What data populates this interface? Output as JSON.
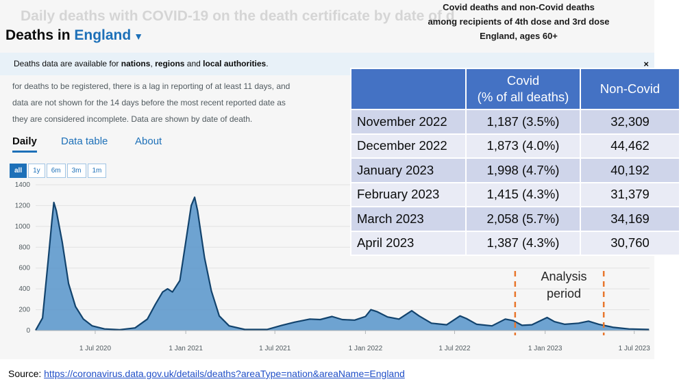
{
  "annotation": {
    "lines": [
      "Covid deaths and non-Covid deaths",
      "among recipients of 4th dose and 3rd dose",
      "England, ages 60+"
    ]
  },
  "dashboard": {
    "ghost_heading": "Daily deaths with COVID-19 on the death certificate by date of d",
    "title_prefix": "Deaths in",
    "area_name": "England",
    "caret": "▼",
    "notice_before": "Deaths data are available for ",
    "notice_b1": "nations",
    "notice_mid1": ", ",
    "notice_b2": "regions",
    "notice_mid2": " and ",
    "notice_b3": "local authorities",
    "notice_after": ".",
    "close": "×",
    "description": [
      "for deaths to be registered, there is a lag in reporting of at least 11 days, and",
      "data are not shown for the 14 days before the most recent reported date as",
      "they are considered incomplete. Data are shown by date of death."
    ],
    "tabs": [
      "Daily",
      "Data table",
      "About"
    ],
    "ranges": [
      "all",
      "1y",
      "6m",
      "3m",
      "1m"
    ],
    "selected_range": "all"
  },
  "table": {
    "headers": [
      "",
      "Covid\n(% of all deaths)",
      "Non-Covid"
    ],
    "rows": [
      {
        "month": "November 2022",
        "covid": "1,187 (3.5%)",
        "non_covid": "32,309"
      },
      {
        "month": "December 2022",
        "covid": "1,873 (4.0%)",
        "non_covid": "44,462"
      },
      {
        "month": "January 2023",
        "covid": "1,998 (4.7%)",
        "non_covid": "40,192"
      },
      {
        "month": "February 2023",
        "covid": "1,415 (4.3%)",
        "non_covid": "31,379"
      },
      {
        "month": "March 2023",
        "covid": "2,058 (5.7%)",
        "non_covid": "34,169"
      },
      {
        "month": "April 2023",
        "covid": "1,387 (4.3%)",
        "non_covid": "30,760"
      }
    ],
    "header_color": "#4472c4"
  },
  "analysis_label": [
    "Analysis",
    "period"
  ],
  "source": {
    "prefix": "Source: ",
    "url": "https://coronavirus.data.gov.uk/details/deaths?areaType=nation&areaName=England"
  },
  "chart_data": {
    "type": "area",
    "x_start": "2020-03-02",
    "x_end": "2023-08-01",
    "ylim": [
      0,
      1400
    ],
    "yticks": [
      0,
      200,
      400,
      600,
      800,
      1000,
      1200,
      1400
    ],
    "xticks": [
      {
        "date": "2020-07-01",
        "label": "1 Jul 2020"
      },
      {
        "date": "2021-01-01",
        "label": "1 Jan 2021"
      },
      {
        "date": "2021-07-01",
        "label": "1 Jul 2021"
      },
      {
        "date": "2022-01-01",
        "label": "1 Jan 2022"
      },
      {
        "date": "2022-07-01",
        "label": "1 Jul 2022"
      },
      {
        "date": "2023-01-01",
        "label": "1 Jan 2023"
      },
      {
        "date": "2023-07-01",
        "label": "1 Jul 2023"
      }
    ],
    "series": [
      {
        "values": [
          [
            "2020-03-02",
            2
          ],
          [
            "2020-03-16",
            120
          ],
          [
            "2020-03-28",
            700
          ],
          [
            "2020-04-04",
            1050
          ],
          [
            "2020-04-08",
            1230
          ],
          [
            "2020-04-13",
            1150
          ],
          [
            "2020-04-25",
            850
          ],
          [
            "2020-05-08",
            450
          ],
          [
            "2020-05-22",
            230
          ],
          [
            "2020-06-07",
            110
          ],
          [
            "2020-06-25",
            45
          ],
          [
            "2020-07-20",
            15
          ],
          [
            "2020-08-20",
            8
          ],
          [
            "2020-09-20",
            25
          ],
          [
            "2020-10-15",
            110
          ],
          [
            "2020-10-31",
            250
          ],
          [
            "2020-11-15",
            370
          ],
          [
            "2020-11-25",
            400
          ],
          [
            "2020-12-05",
            370
          ],
          [
            "2020-12-20",
            480
          ],
          [
            "2021-01-01",
            850
          ],
          [
            "2021-01-12",
            1200
          ],
          [
            "2021-01-19",
            1280
          ],
          [
            "2021-01-25",
            1150
          ],
          [
            "2021-02-08",
            700
          ],
          [
            "2021-02-22",
            380
          ],
          [
            "2021-03-10",
            140
          ],
          [
            "2021-03-30",
            45
          ],
          [
            "2021-05-01",
            10
          ],
          [
            "2021-06-15",
            10
          ],
          [
            "2021-07-15",
            50
          ],
          [
            "2021-08-10",
            80
          ],
          [
            "2021-09-10",
            110
          ],
          [
            "2021-10-01",
            105
          ],
          [
            "2021-10-25",
            135
          ],
          [
            "2021-11-15",
            105
          ],
          [
            "2021-12-10",
            100
          ],
          [
            "2022-01-01",
            135
          ],
          [
            "2022-01-12",
            200
          ],
          [
            "2022-01-25",
            180
          ],
          [
            "2022-02-15",
            130
          ],
          [
            "2022-03-10",
            110
          ],
          [
            "2022-04-05",
            190
          ],
          [
            "2022-04-20",
            140
          ],
          [
            "2022-05-15",
            70
          ],
          [
            "2022-06-15",
            55
          ],
          [
            "2022-07-12",
            140
          ],
          [
            "2022-07-25",
            115
          ],
          [
            "2022-08-15",
            60
          ],
          [
            "2022-09-15",
            45
          ],
          [
            "2022-10-12",
            110
          ],
          [
            "2022-10-28",
            95
          ],
          [
            "2022-11-15",
            50
          ],
          [
            "2022-12-05",
            55
          ],
          [
            "2022-12-25",
            100
          ],
          [
            "2023-01-05",
            125
          ],
          [
            "2023-01-20",
            85
          ],
          [
            "2023-02-10",
            60
          ],
          [
            "2023-03-10",
            70
          ],
          [
            "2023-03-30",
            90
          ],
          [
            "2023-04-20",
            60
          ],
          [
            "2023-05-20",
            30
          ],
          [
            "2023-06-20",
            15
          ],
          [
            "2023-07-31",
            10
          ]
        ]
      }
    ],
    "analysis_period": [
      "2022-11-01",
      "2023-04-30"
    ],
    "colors": {
      "fill": "#5694ca",
      "line": "#12436d",
      "marker": "#e8762c"
    }
  }
}
